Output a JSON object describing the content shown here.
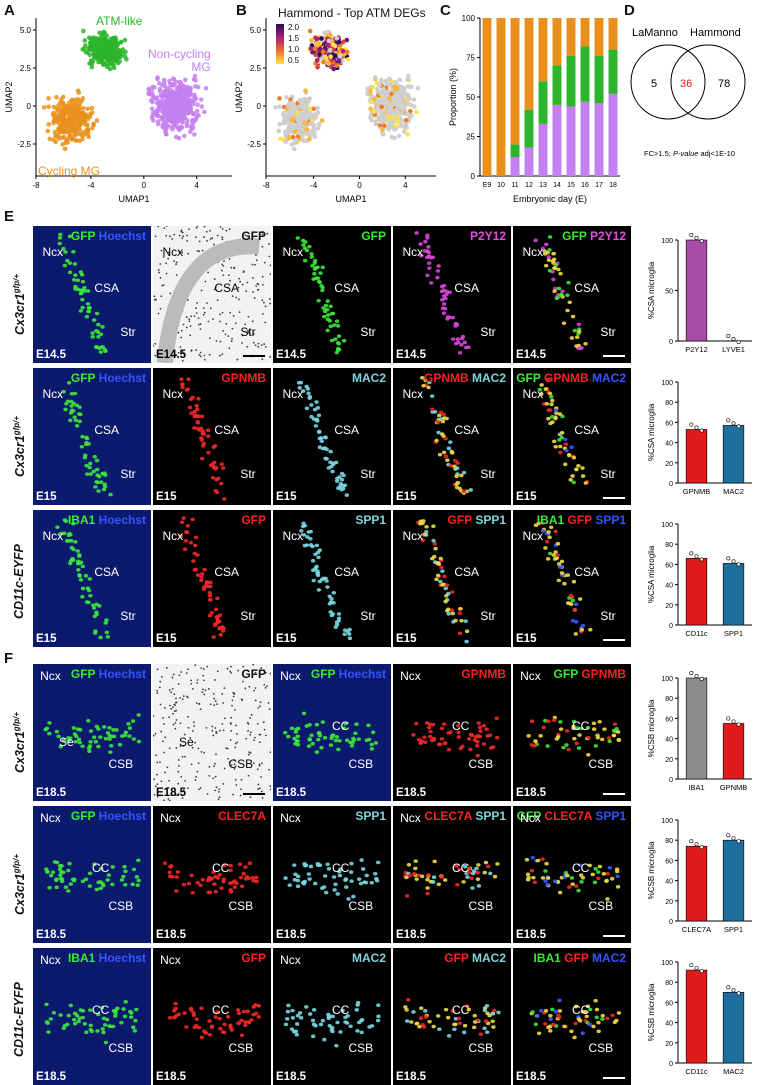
{
  "panel_labels": [
    "A",
    "B",
    "C",
    "D",
    "E",
    "F"
  ],
  "colors": {
    "atm_like": "#2cb52c",
    "non_cycling": "#c47ff0",
    "cycling": "#e9901c",
    "grey": "#cfcfcf",
    "p2y12": "#a64da8",
    "gpnmb_bar": "#e01b1b",
    "mac2_bar": "#1f6f9e",
    "iba1_bar": "#8c8c8c",
    "gfp": "#33ee33",
    "hoechst": "#3355ff",
    "red": "#ff2020",
    "cyan": "#7fd4e0",
    "magenta": "#e050e0"
  },
  "panelA": {
    "cluster_labels": [
      "ATM-like",
      "Non-cycling\nMG",
      "Cycling MG"
    ],
    "xlabel": "UMAP1",
    "ylabel": "UMAP2",
    "xticks": [
      "-8",
      "-4",
      "0",
      "4"
    ],
    "yticks": [
      "5.0",
      "2.5",
      "0",
      "-2.5"
    ]
  },
  "panelB": {
    "title": "Hammond - Top ATM DEGs",
    "colorbar_ticks": [
      "2.0",
      "1.5",
      "1.0",
      "0.5"
    ],
    "xlabel": "UMAP1",
    "ylabel": "UMAP2",
    "xticks": [
      "-8",
      "-4",
      "0",
      "4"
    ],
    "yticks": [
      "5.0",
      "2.5",
      "0",
      "-2.5"
    ]
  },
  "panelD": {
    "left_label": "LaManno",
    "right_label": "Hammond",
    "left_only": "5",
    "overlap": "36",
    "right_only": "78",
    "caption_prefix": "FC>1.5; ",
    "caption_italic": "P-value",
    "caption_suffix": " adj<1E-10"
  },
  "panelE": {
    "rows": [
      {
        "genotype": "Cx3cr1",
        "superscript": "gfp/+",
        "tiles": [
          {
            "channels": [
              [
                "GFP",
                "#33ee33"
              ],
              [
                " Hoechst",
                "#3355ff"
              ]
            ],
            "stage": "E14.5",
            "regions": [
              "Ncx",
              "CSA",
              "Str"
            ]
          },
          {
            "channels": [
              [
                "GFP",
                "#111"
              ]
            ],
            "stage": "E14.5",
            "regions": [
              "Ncx",
              "CSA",
              "Str"
            ],
            "inverted": true
          },
          {
            "channels": [
              [
                "GFP",
                "#33ee33"
              ]
            ],
            "stage": "E14.5",
            "regions": [
              "Ncx",
              "CSA",
              "Str"
            ]
          },
          {
            "channels": [
              [
                "P2Y12",
                "#e050e0"
              ]
            ],
            "stage": "E14.5",
            "regions": [
              "Ncx",
              "CSA",
              "Str"
            ]
          },
          {
            "channels": [
              [
                "GFP ",
                "#33ee33"
              ],
              [
                "P2Y12",
                "#e050e0"
              ]
            ],
            "stage": "E14.5",
            "regions": [
              "Ncx",
              "CSA",
              "Str"
            ]
          }
        ],
        "bar": {
          "ylabel": "%CSA microglia",
          "yticks": [
            "100",
            "50",
            "0"
          ],
          "ymax": 100,
          "categories": [
            "P2Y12",
            "LYVE1"
          ],
          "values": [
            100,
            0
          ]
        }
      },
      {
        "genotype": "Cx3cr1",
        "superscript": "gfp/+",
        "tiles": [
          {
            "channels": [
              [
                "GFP",
                "#33ee33"
              ],
              [
                " Hoechst",
                "#3355ff"
              ]
            ],
            "stage": "E15",
            "regions": [
              "Ncx",
              "CSA",
              "Str"
            ]
          },
          {
            "channels": [
              [
                "GPNMB",
                "#ff2020"
              ]
            ],
            "stage": "E15",
            "regions": [
              "Ncx",
              "CSA",
              "Str"
            ]
          },
          {
            "channels": [
              [
                "MAC2",
                "#7fd4e0"
              ]
            ],
            "stage": "E15",
            "regions": [
              "Ncx",
              "CSA",
              "Str"
            ]
          },
          {
            "channels": [
              [
                "GPNMB ",
                "#ff2020"
              ],
              [
                "MAC2",
                "#7fd4e0"
              ]
            ],
            "stage": "E15",
            "regions": [
              "Ncx",
              "CSA",
              "Str"
            ]
          },
          {
            "channels": [
              [
                "GFP ",
                "#33ee33"
              ],
              [
                "GPNMB ",
                "#ff2020"
              ],
              [
                "MAC2",
                "#3355ff"
              ]
            ],
            "stage": "E15",
            "regions": [
              "Ncx",
              "CSA",
              "Str"
            ]
          }
        ],
        "bar": {
          "ylabel": "%CSA microglia",
          "yticks": [
            "100",
            "80",
            "60",
            "40",
            "20",
            "0"
          ],
          "ymax": 100,
          "categories": [
            "GPNMB",
            "MAC2"
          ],
          "values": [
            53,
            57
          ]
        }
      },
      {
        "genotype": "CD11c-EYFP",
        "superscript": "",
        "tiles": [
          {
            "channels": [
              [
                "IBA1",
                "#33ee33"
              ],
              [
                " Hoechst",
                "#3355ff"
              ]
            ],
            "stage": "E15",
            "regions": [
              "Ncx",
              "CSA",
              "Str"
            ]
          },
          {
            "channels": [
              [
                "GFP",
                "#ff2020"
              ]
            ],
            "stage": "E15",
            "regions": [
              "Ncx",
              "CSA",
              "Str"
            ]
          },
          {
            "channels": [
              [
                "SPP1",
                "#7fd4e0"
              ]
            ],
            "stage": "E15",
            "regions": [
              "Ncx",
              "CSA",
              "Str"
            ]
          },
          {
            "channels": [
              [
                "GFP ",
                "#ff2020"
              ],
              [
                "SPP1",
                "#7fd4e0"
              ]
            ],
            "stage": "E15",
            "regions": [
              "Ncx",
              "CSA",
              "Str"
            ]
          },
          {
            "channels": [
              [
                "IBA1 ",
                "#33ee33"
              ],
              [
                "GFP ",
                "#ff2020"
              ],
              [
                "SPP1",
                "#3355ff"
              ]
            ],
            "stage": "E15",
            "regions": [
              "Ncx",
              "CSA",
              "Str"
            ]
          }
        ],
        "bar": {
          "ylabel": "%CSA microglia",
          "yticks": [
            "100",
            "80",
            "60",
            "40",
            "20",
            "0"
          ],
          "ymax": 100,
          "categories": [
            "CD11c",
            "SPP1"
          ],
          "values": [
            66,
            61
          ]
        }
      }
    ]
  },
  "panelF": {
    "rows": [
      {
        "genotype": "Cx3cr1",
        "superscript": "gfp/+",
        "tiles": [
          {
            "channels": [
              [
                "GFP",
                "#33ee33"
              ],
              [
                " Hoechst",
                "#3355ff"
              ]
            ],
            "stage": "E18.5",
            "regions": [
              "Ncx",
              "Se",
              "CSB"
            ]
          },
          {
            "channels": [
              [
                "GFP",
                "#111"
              ]
            ],
            "stage": "E18.5",
            "regions": [
              "Se",
              "CSB"
            ],
            "inverted": true
          },
          {
            "channels": [
              [
                "GFP",
                "#33ee33"
              ],
              [
                " Hoechst",
                "#3355ff"
              ]
            ],
            "stage": "E18.5",
            "regions": [
              "Ncx",
              "CC",
              "CSB"
            ]
          },
          {
            "channels": [
              [
                "GPNMB",
                "#ff2020"
              ]
            ],
            "stage": "E18.5",
            "regions": [
              "Ncx",
              "CC",
              "CSB"
            ]
          },
          {
            "channels": [
              [
                "GFP ",
                "#33ee33"
              ],
              [
                "GPNMB",
                "#ff2020"
              ]
            ],
            "stage": "E18.5",
            "regions": [
              "Ncx",
              "CC",
              "CSB"
            ]
          }
        ],
        "bar": {
          "ylabel": "%CSB microglia",
          "yticks": [
            "100",
            "80",
            "60",
            "40",
            "20",
            "0"
          ],
          "ymax": 100,
          "categories": [
            "IBA1",
            "GPNMB"
          ],
          "values": [
            100,
            55
          ]
        }
      },
      {
        "genotype": "Cx3cr1",
        "superscript": "gfp/+",
        "tiles": [
          {
            "channels": [
              [
                "GFP",
                "#33ee33"
              ],
              [
                " Hoechst",
                "#3355ff"
              ]
            ],
            "stage": "E18.5",
            "regions": [
              "Ncx",
              "CC",
              "CSB"
            ]
          },
          {
            "channels": [
              [
                "CLEC7A",
                "#ff2020"
              ]
            ],
            "stage": "E18.5",
            "regions": [
              "Ncx",
              "CC",
              "CSB"
            ]
          },
          {
            "channels": [
              [
                "SPP1",
                "#7fd4e0"
              ]
            ],
            "stage": "E18.5",
            "regions": [
              "Ncx",
              "CC",
              "CSB"
            ]
          },
          {
            "channels": [
              [
                "CLEC7A ",
                "#ff2020"
              ],
              [
                "SPP1",
                "#7fd4e0"
              ]
            ],
            "stage": "E18.5",
            "regions": [
              "Ncx",
              "CC",
              "CSB"
            ]
          },
          {
            "channels": [
              [
                "GFP ",
                "#33ee33"
              ],
              [
                "CLEC7A ",
                "#ff2020"
              ],
              [
                "SPP1",
                "#3355ff"
              ]
            ],
            "stage": "E18.5",
            "regions": [
              "Ncx",
              "CC",
              "CSB"
            ]
          }
        ],
        "bar": {
          "ylabel": "%CSB microglia",
          "yticks": [
            "100",
            "80",
            "60",
            "40",
            "20",
            "0"
          ],
          "ymax": 100,
          "categories": [
            "CLEC7A",
            "SPP1"
          ],
          "values": [
            74,
            80
          ]
        }
      },
      {
        "genotype": "CD11c-EYFP",
        "superscript": "",
        "tiles": [
          {
            "channels": [
              [
                "IBA1",
                "#33ee33"
              ],
              [
                " Hoechst",
                "#3355ff"
              ]
            ],
            "stage": "E18.5",
            "regions": [
              "Ncx",
              "CC",
              "CSB"
            ]
          },
          {
            "channels": [
              [
                "GFP",
                "#ff2020"
              ]
            ],
            "stage": "E18.5",
            "regions": [
              "Ncx",
              "CC",
              "CSB"
            ]
          },
          {
            "channels": [
              [
                "MAC2",
                "#7fd4e0"
              ]
            ],
            "stage": "E18.5",
            "regions": [
              "Ncx",
              "CC",
              "CSB"
            ]
          },
          {
            "channels": [
              [
                "GFP ",
                "#ff2020"
              ],
              [
                "MAC2",
                "#7fd4e0"
              ]
            ],
            "stage": "E18.5",
            "regions": [
              "CC",
              "CSB"
            ]
          },
          {
            "channels": [
              [
                "IBA1 ",
                "#33ee33"
              ],
              [
                "GFP ",
                "#ff2020"
              ],
              [
                "MAC2",
                "#3355ff"
              ]
            ],
            "stage": "E18.5",
            "regions": [
              "CC",
              "CSB"
            ]
          }
        ],
        "bar": {
          "ylabel": "%CSB microglia",
          "yticks": [
            "100",
            "80",
            "60",
            "40",
            "20",
            "0"
          ],
          "ymax": 100,
          "categories": [
            "CD11c",
            "MAC2"
          ],
          "values": [
            92,
            70
          ]
        }
      }
    ]
  },
  "chart_data": [
    {
      "type": "bar",
      "stacked": true,
      "xlabel": "Embryonic day (E)",
      "ylabel": "Proportion (%)",
      "ylim": [
        0,
        100
      ],
      "yticks": [
        "0",
        "25",
        "50",
        "75",
        "100"
      ],
      "categories": [
        "E9",
        "10",
        "11",
        "12",
        "13",
        "14",
        "15",
        "16",
        "17",
        "18"
      ],
      "series": [
        {
          "color": "#c47ff0",
          "values": [
            0,
            0,
            12,
            18,
            33,
            45,
            44,
            47,
            46,
            52
          ]
        },
        {
          "color": "#2cb52c",
          "values": [
            0,
            0,
            8,
            24,
            27,
            25,
            32,
            35,
            30,
            28
          ]
        },
        {
          "color": "#e9901c",
          "values": [
            100,
            100,
            80,
            58,
            40,
            30,
            24,
            18,
            24,
            20
          ]
        }
      ]
    }
  ]
}
